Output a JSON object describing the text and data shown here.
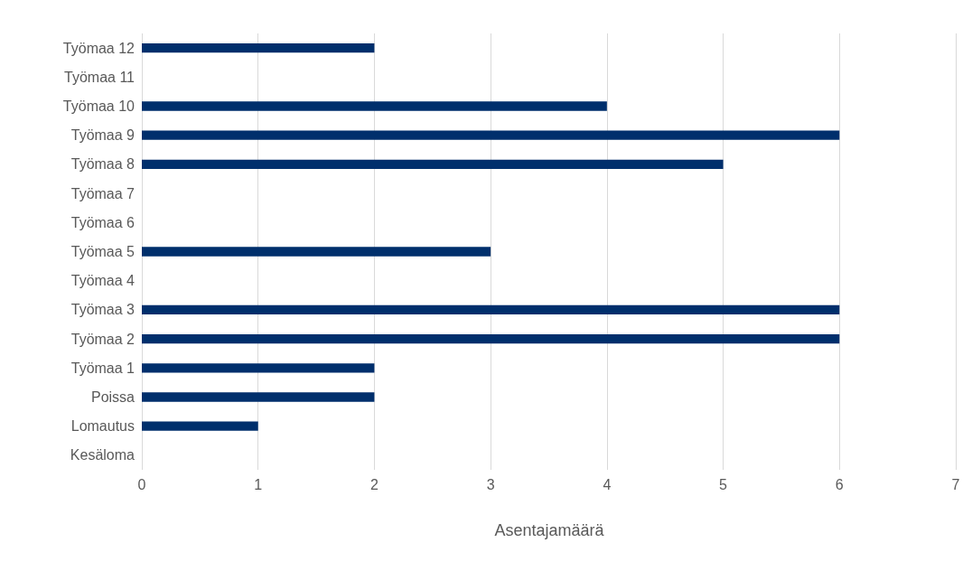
{
  "chart_data": {
    "type": "bar",
    "orientation": "horizontal",
    "xlabel": "Asentajamäärä",
    "categories": [
      "Työmaa 12",
      "Työmaa 11",
      "Työmaa 10",
      "Työmaa 9",
      "Työmaa 8",
      "Työmaa 7",
      "Työmaa 6",
      "Työmaa 5",
      "Työmaa 4",
      "Työmaa 3",
      "Työmaa 2",
      "Työmaa 1",
      "Poissa",
      "Lomautus",
      "Kesäloma"
    ],
    "values": [
      2,
      0,
      4,
      6,
      5,
      0,
      0,
      3,
      0,
      6,
      6,
      2,
      2,
      1,
      0
    ],
    "color": "#002f6c",
    "xlim": [
      0,
      7
    ],
    "xticks": [
      0,
      1,
      2,
      3,
      4,
      5,
      6,
      7
    ],
    "grid": "x"
  }
}
